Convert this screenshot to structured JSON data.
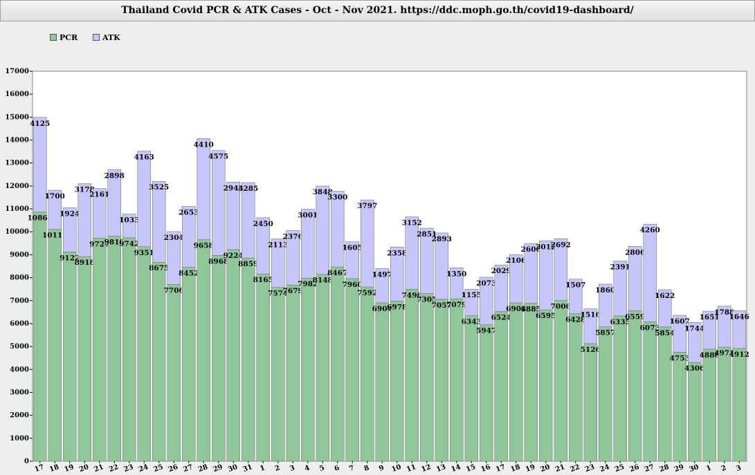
{
  "title": "Thailand Covid PCR & ATK Cases - Oct - Nov 2021. https://ddc.moph.go.th/covid19-dashboard/",
  "colors": {
    "pcr": "#8fc79b",
    "atk": "#c6c6fa",
    "background": "#ffffff",
    "page": "#eeeeee"
  },
  "chart_data": {
    "type": "bar",
    "stacked": true,
    "title": "Thailand Covid PCR & ATK Cases - Oct - Nov 2021. https://ddc.moph.go.th/covid19-dashboard/",
    "xlabel": "",
    "ylabel": "",
    "ylim": [
      0,
      17000
    ],
    "yticks": [
      0,
      1000,
      2000,
      3000,
      4000,
      5000,
      6000,
      7000,
      8000,
      9000,
      10000,
      11000,
      12000,
      13000,
      14000,
      15000,
      16000,
      17000
    ],
    "grid": false,
    "legend_position": "top-left",
    "categories": [
      "17",
      "18",
      "19",
      "20",
      "21",
      "22",
      "23",
      "24",
      "25",
      "26",
      "27",
      "28",
      "29",
      "30",
      "31",
      "1",
      "2",
      "3",
      "4",
      "5",
      "6",
      "7",
      "8",
      "9",
      "10",
      "11",
      "12",
      "13",
      "14",
      "15",
      "16",
      "17",
      "18",
      "19",
      "20",
      "21",
      "22",
      "23",
      "24",
      "25",
      "26",
      "27",
      "28",
      "29",
      "30",
      "1",
      "2",
      "3"
    ],
    "series": [
      {
        "name": "PCR",
        "values": [
          10863,
          10111,
          9122,
          8918,
          9727,
          9810,
          9742,
          9351,
          8675,
          7706,
          8452,
          9658,
          8968,
          9224,
          8859,
          8165,
          7574,
          7679,
          7982,
          8148,
          8467,
          7960,
          7592,
          6904,
          6978,
          7496,
          7305,
          7057,
          7079,
          6343,
          5947,
          6524,
          6901,
          6885,
          6595,
          7006,
          6428,
          5126,
          5857,
          6335,
          6559,
          6073,
          5854,
          4753,
          4306,
          4886,
          4971,
          4912
        ]
      },
      {
        "name": "ATK",
        "values": [
          4125,
          1700,
          1924,
          3178,
          2161,
          2898,
          1033,
          4163,
          3525,
          2304,
          2653,
          4410,
          4575,
          2944,
          3285,
          2450,
          2113,
          2376,
          3001,
          3848,
          3300,
          1605,
          3797,
          1497,
          2358,
          3152,
          2851,
          2893,
          1350,
          1155,
          2073,
          2029,
          2106,
          2606,
          3012,
          2692,
          1507,
          1516,
          1860,
          2391,
          2806,
          4260,
          1622,
          1607,
          1744,
          1651,
          1788,
          1646
        ]
      }
    ]
  }
}
